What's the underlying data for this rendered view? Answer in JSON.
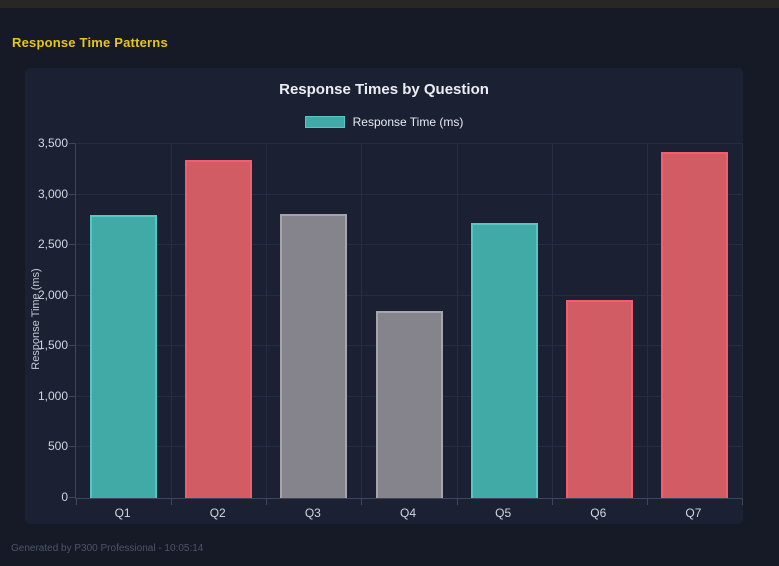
{
  "page": {
    "header_title": "Response Time Patterns",
    "footer": "Generated by P300 Professional - 10:05:14"
  },
  "chart_data": {
    "type": "bar",
    "title": "Response Times by Question",
    "legend": [
      "Response Time (ms)"
    ],
    "legend_position": "top",
    "xlabel": "",
    "ylabel": "Response Time (ms)",
    "categories": [
      "Q1",
      "Q2",
      "Q3",
      "Q4",
      "Q5",
      "Q6",
      "Q7"
    ],
    "values": [
      2800,
      3340,
      2810,
      1850,
      2720,
      1960,
      3420
    ],
    "bar_colors": [
      "teal",
      "red",
      "gray",
      "gray",
      "teal",
      "red",
      "red"
    ],
    "ylim": [
      0,
      3500
    ],
    "ytick_step": 500,
    "yticks": [
      "0",
      "500",
      "1,000",
      "1,500",
      "2,000",
      "2,500",
      "3,000",
      "3,500"
    ],
    "grid": true
  },
  "colors": {
    "page_bg": "#161a27",
    "top_strip": "#282723",
    "panel_bg": "#1b2033",
    "grid": "#262c42",
    "axis": "#3f455c",
    "header_yellow": "#e5c61b",
    "tick_text": "#d3d6e0",
    "title_text": "#eceef4",
    "footer_text": "#4e5468",
    "teal_fill": "#41a9a6",
    "teal_border": "#52c7c3",
    "red_fill": "#d25c63",
    "red_border": "#f0606c",
    "gray_fill": "#85848c",
    "gray_border": "#a5a5ad"
  }
}
